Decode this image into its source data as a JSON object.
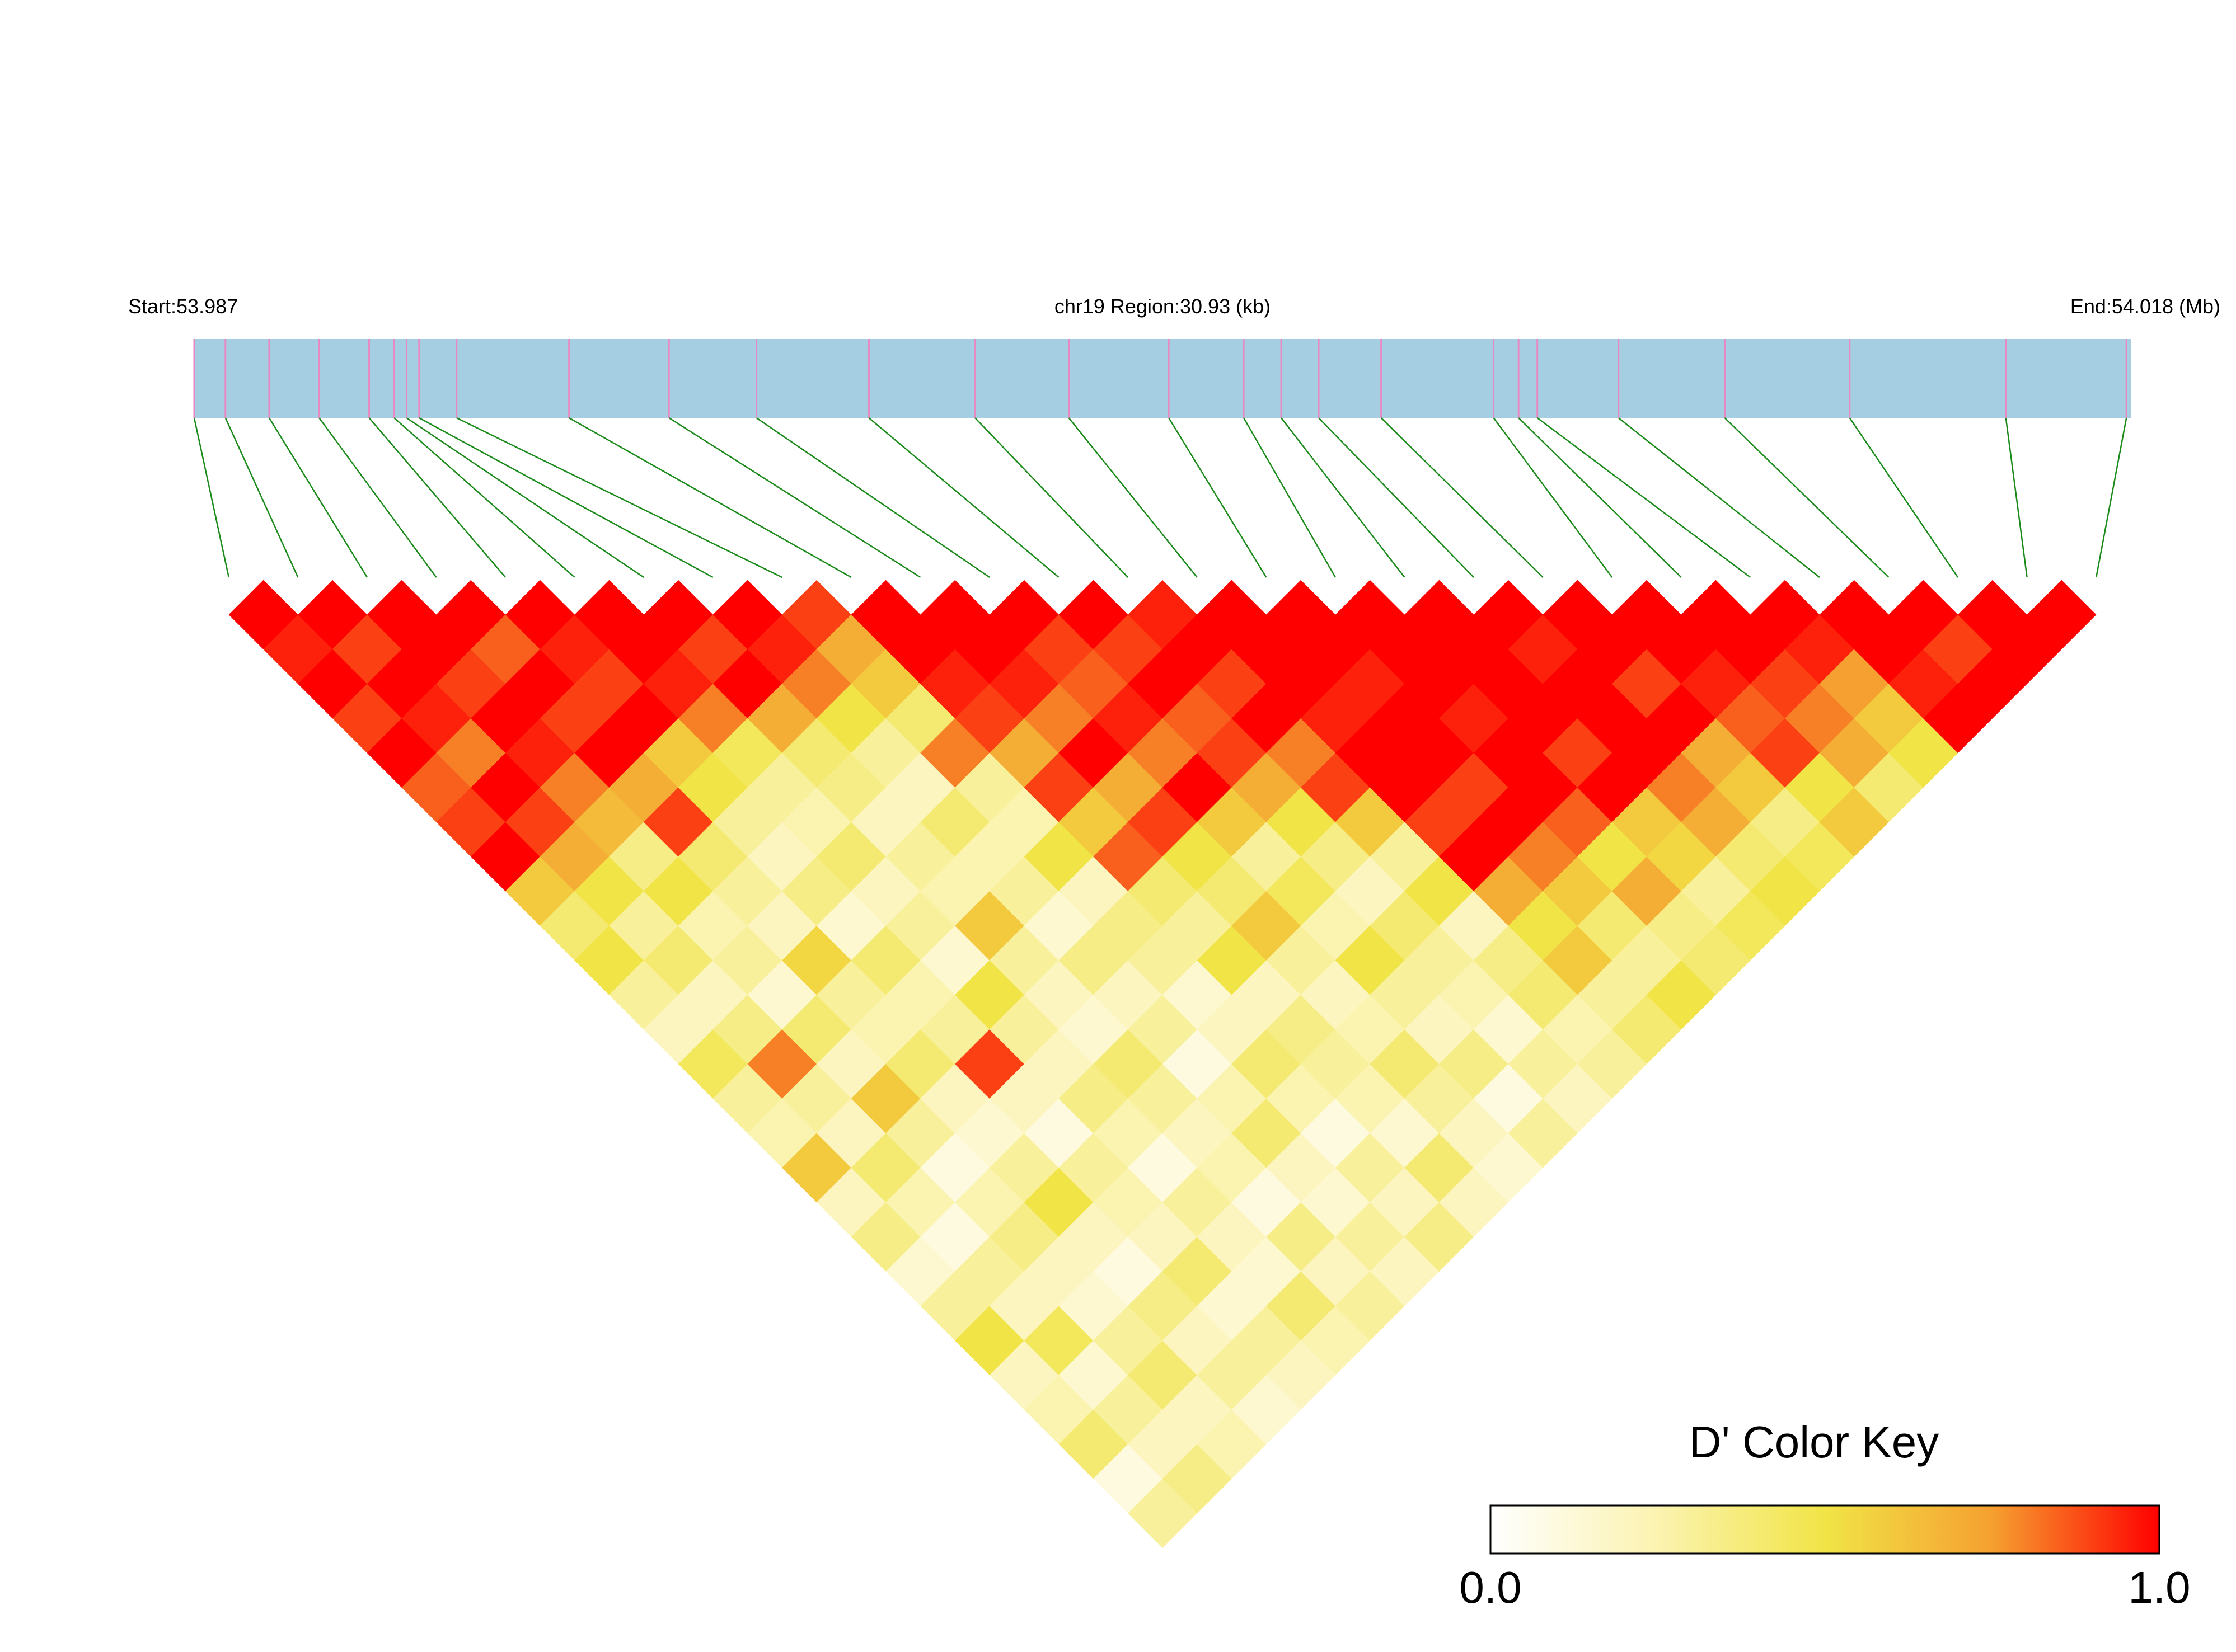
{
  "chart_data": {
    "type": "ld_heatmap",
    "start_label": "Start:53.987",
    "region_label": "chr19 Region:30.93 (kb)",
    "end_label": "End:54.018 (Mb)",
    "xlim": [
      53.987,
      54.018
    ],
    "positions": [
      53.987,
      53.9875,
      53.9882,
      53.989,
      53.9898,
      53.9902,
      53.9904,
      53.9906,
      53.9912,
      53.993,
      53.9946,
      53.996,
      53.9978,
      53.9995,
      54.001,
      54.0026,
      54.0038,
      54.0044,
      54.005,
      54.006,
      54.0078,
      54.0082,
      54.0085,
      54.0098,
      54.0115,
      54.0135,
      54.016,
      54.01793
    ],
    "bar_color": "#a6cee3",
    "snp_color": "#e78ac3",
    "link_color": "#1a8a1a",
    "ld": [
      [
        1,
        0.95,
        1,
        0.9,
        1,
        0.85,
        0.9,
        1,
        0.6,
        0.4,
        0.5,
        0.3,
        0.2,
        0.45,
        0.3,
        0.25,
        0.6,
        0.2,
        0.35,
        0.15,
        0.3,
        0.5,
        0.2,
        0.25,
        0.4,
        0.1,
        0.3
      ],
      [
        1,
        0.9,
        1,
        0.95,
        0.8,
        1,
        0.9,
        0.7,
        0.5,
        0.3,
        0.4,
        0.2,
        0.35,
        0.8,
        0.3,
        0.2,
        0.4,
        0.25,
        0.1,
        0.3,
        0.2,
        0.45,
        0.15,
        0.3,
        0.2,
        0.35
      ],
      [
        1,
        1,
        0.9,
        1,
        0.95,
        0.8,
        0.65,
        0.35,
        0.5,
        0.25,
        0.3,
        0.15,
        0.4,
        0.2,
        0.6,
        0.3,
        0.1,
        0.25,
        0.35,
        0.2,
        0.15,
        0.3,
        0.4,
        0.2,
        0.25
      ],
      [
        1,
        0.85,
        1,
        0.9,
        1,
        0.7,
        0.9,
        0.4,
        0.3,
        0.2,
        0.55,
        0.3,
        0.25,
        0.4,
        0.2,
        0.15,
        0.3,
        0.5,
        0.2,
        0.1,
        0.35,
        0.2,
        0.3,
        0.15
      ],
      [
        1,
        0.95,
        0.9,
        1,
        0.6,
        0.5,
        0.3,
        0.2,
        0.35,
        0.15,
        0.4,
        0.25,
        0.3,
        0.9,
        0.2,
        0.1,
        0.3,
        0.25,
        0.2,
        0.4,
        0.15,
        0.3,
        0.2
      ],
      [
        1,
        1,
        0.95,
        0.8,
        0.45,
        0.3,
        0.25,
        0.4,
        0.2,
        0.3,
        0.15,
        0.5,
        0.3,
        0.2,
        0.35,
        0.25,
        0.1,
        0.3,
        0.2,
        0.15,
        0.4,
        0.25
      ],
      [
        1,
        0.9,
        1,
        0.7,
        0.4,
        0.35,
        0.2,
        0.3,
        0.25,
        0.6,
        0.3,
        0.2,
        0.15,
        0.4,
        0.3,
        0.2,
        0.25,
        0.1,
        0.35,
        0.2,
        0.3
      ],
      [
        1,
        0.95,
        0.8,
        0.5,
        0.3,
        0.2,
        0.4,
        0.25,
        0.3,
        0.15,
        0.35,
        0.2,
        0.3,
        0.1,
        0.25,
        0.4,
        0.2,
        0.15,
        0.3,
        0.2
      ],
      [
        0.9,
        0.7,
        0.6,
        0.4,
        0.8,
        0.3,
        0.25,
        0.5,
        0.2,
        0.35,
        0.3,
        0.15,
        0.2,
        0.4,
        0.25,
        0.1,
        0.3,
        0.2,
        0.35
      ],
      [
        1,
        1,
        0.95,
        0.9,
        0.7,
        0.9,
        0.6,
        0.85,
        0.4,
        0.3,
        0.5,
        0.2,
        0.35,
        0.3,
        0.25,
        0.15,
        0.4,
        0.2
      ],
      [
        1,
        1,
        0.95,
        0.8,
        1,
        0.7,
        0.9,
        0.5,
        0.4,
        0.6,
        0.3,
        0.2,
        0.25,
        0.4,
        0.3,
        0.2,
        0.15
      ],
      [
        1,
        0.9,
        0.85,
        0.95,
        0.8,
        1,
        0.6,
        0.3,
        0.45,
        0.25,
        0.5,
        0.3,
        0.2,
        0.35,
        0.1,
        0.3
      ],
      [
        1,
        0.9,
        1,
        0.85,
        0.9,
        0.7,
        0.5,
        0.35,
        0.2,
        0.4,
        0.3,
        0.25,
        0.15,
        0.3,
        0.2
      ],
      [
        0.95,
        1,
        0.9,
        1,
        0.8,
        0.9,
        0.6,
        0.3,
        0.5,
        0.2,
        0.35,
        0.4,
        0.25,
        0.3
      ],
      [
        1,
        1,
        1,
        0.95,
        1,
        1,
        0.9,
        1,
        0.7,
        0.5,
        0.6,
        0.3,
        0.4
      ],
      [
        1,
        1,
        0.95,
        1,
        1,
        0.9,
        1,
        0.8,
        0.6,
        0.4,
        0.3,
        0.5
      ],
      [
        1,
        1,
        1,
        0.95,
        1,
        1,
        0.85,
        0.5,
        0.7,
        0.35,
        0.4
      ],
      [
        1,
        1,
        1,
        1,
        0.9,
        1,
        0.6,
        0.55,
        0.3,
        0.45
      ],
      [
        1,
        0.95,
        1,
        1,
        1,
        0.8,
        0.7,
        0.4,
        0.5
      ],
      [
        1,
        1,
        0.9,
        1,
        0.7,
        0.6,
        0.35,
        0.45
      ],
      [
        1,
        1,
        0.95,
        0.85,
        0.9,
        0.5,
        0.6
      ],
      [
        1,
        1,
        0.9,
        0.8,
        0.7,
        0.4
      ],
      [
        1,
        0.95,
        0.75,
        0.6,
        0.5
      ],
      [
        1,
        1,
        0.95,
        1
      ],
      [
        1,
        0.9,
        1
      ],
      [
        1,
        1
      ],
      [
        1
      ]
    ],
    "color_key_title": "D' Color Key",
    "color_key_lim": [
      0,
      1
    ],
    "color_key_ticks": [
      {
        "value": 0,
        "label": "0.0"
      },
      {
        "value": 1,
        "label": "1.0"
      }
    ],
    "color_key_colors": [
      "#ffffff",
      "#fbf3b0",
      "#f1e447",
      "#f5a030",
      "#ff0000"
    ]
  }
}
